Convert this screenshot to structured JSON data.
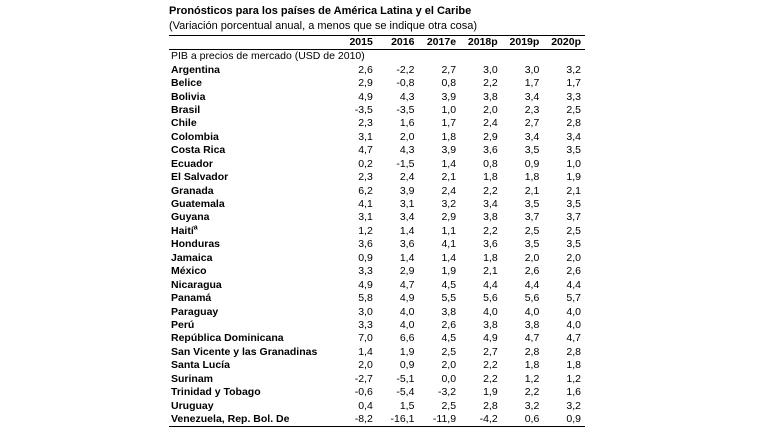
{
  "doc": {
    "title": "Pronósticos para los países de América Latina y el Caribe",
    "subtitle": "(Variación porcentual anual, a menos que se indique otra cosa)",
    "section_label": "PIB a precios de mercado (USD de 2010)"
  },
  "columns": [
    "2015",
    "2016",
    "2017e",
    "2018p",
    "2019p",
    "2020p"
  ],
  "rows": [
    {
      "country": "Argentina",
      "note": "",
      "values": [
        "2,6",
        "-2,2",
        "2,7",
        "3,0",
        "3,0",
        "3,2"
      ]
    },
    {
      "country": "Belice",
      "note": "",
      "values": [
        "2,9",
        "-0,8",
        "0,8",
        "2,2",
        "1,7",
        "1,7"
      ]
    },
    {
      "country": "Bolivia",
      "note": "",
      "values": [
        "4,9",
        "4,3",
        "3,9",
        "3,8",
        "3,4",
        "3,3"
      ]
    },
    {
      "country": "Brasil",
      "note": "",
      "values": [
        "-3,5",
        "-3,5",
        "1,0",
        "2,0",
        "2,3",
        "2,5"
      ]
    },
    {
      "country": "Chile",
      "note": "",
      "values": [
        "2,3",
        "1,6",
        "1,7",
        "2,4",
        "2,7",
        "2,8"
      ]
    },
    {
      "country": "Colombia",
      "note": "",
      "values": [
        "3,1",
        "2,0",
        "1,8",
        "2,9",
        "3,4",
        "3,4"
      ]
    },
    {
      "country": "Costa Rica",
      "note": "",
      "values": [
        "4,7",
        "4,3",
        "3,9",
        "3,6",
        "3,5",
        "3,5"
      ]
    },
    {
      "country": "Ecuador",
      "note": "",
      "values": [
        "0,2",
        "-1,5",
        "1,4",
        "0,8",
        "0,9",
        "1,0"
      ]
    },
    {
      "country": "El Salvador",
      "note": "",
      "values": [
        "2,3",
        "2,4",
        "2,1",
        "1,8",
        "1,8",
        "1,9"
      ]
    },
    {
      "country": "Granada",
      "note": "",
      "values": [
        "6,2",
        "3,9",
        "2,4",
        "2,2",
        "2,1",
        "2,1"
      ]
    },
    {
      "country": "Guatemala",
      "note": "",
      "values": [
        "4,1",
        "3,1",
        "3,2",
        "3,4",
        "3,5",
        "3,5"
      ]
    },
    {
      "country": "Guyana",
      "note": "",
      "values": [
        "3,1",
        "3,4",
        "2,9",
        "3,8",
        "3,7",
        "3,7"
      ]
    },
    {
      "country": "Haití",
      "note": "a",
      "values": [
        "1,2",
        "1,4",
        "1,1",
        "2,2",
        "2,5",
        "2,5"
      ]
    },
    {
      "country": "Honduras",
      "note": "",
      "values": [
        "3,6",
        "3,6",
        "4,1",
        "3,6",
        "3,5",
        "3,5"
      ]
    },
    {
      "country": "Jamaica",
      "note": "",
      "values": [
        "0,9",
        "1,4",
        "1,4",
        "1,8",
        "2,0",
        "2,0"
      ]
    },
    {
      "country": "México",
      "note": "",
      "values": [
        "3,3",
        "2,9",
        "1,9",
        "2,1",
        "2,6",
        "2,6"
      ]
    },
    {
      "country": "Nicaragua",
      "note": "",
      "values": [
        "4,9",
        "4,7",
        "4,5",
        "4,4",
        "4,4",
        "4,4"
      ]
    },
    {
      "country": "Panamá",
      "note": "",
      "values": [
        "5,8",
        "4,9",
        "5,5",
        "5,6",
        "5,6",
        "5,7"
      ]
    },
    {
      "country": "Paraguay",
      "note": "",
      "values": [
        "3,0",
        "4,0",
        "3,8",
        "4,0",
        "4,0",
        "4,0"
      ]
    },
    {
      "country": "Perú",
      "note": "",
      "values": [
        "3,3",
        "4,0",
        "2,6",
        "3,8",
        "3,8",
        "4,0"
      ]
    },
    {
      "country": "República Dominicana",
      "note": "",
      "values": [
        "7,0",
        "6,6",
        "4,5",
        "4,9",
        "4,7",
        "4,7"
      ]
    },
    {
      "country": "San Vicente y las Granadinas",
      "note": "",
      "values": [
        "1,4",
        "1,9",
        "2,5",
        "2,7",
        "2,8",
        "2,8"
      ]
    },
    {
      "country": "Santa Lucía",
      "note": "",
      "values": [
        "2,0",
        "0,9",
        "2,0",
        "2,2",
        "1,8",
        "1,8"
      ]
    },
    {
      "country": "Surinam",
      "note": "",
      "values": [
        "-2,7",
        "-5,1",
        "0,0",
        "2,2",
        "1,2",
        "1,2"
      ]
    },
    {
      "country": "Trinidad y Tobago",
      "note": "",
      "values": [
        "-0,6",
        "-5,4",
        "-3,2",
        "1,9",
        "2,2",
        "1,6"
      ]
    },
    {
      "country": "Uruguay",
      "note": "",
      "values": [
        "0,4",
        "1,5",
        "2,5",
        "2,8",
        "3,2",
        "3,2"
      ]
    },
    {
      "country": "Venezuela, Rep. Bol. De",
      "note": "",
      "values": [
        "-8,2",
        "-16,1",
        "-11,9",
        "-4,2",
        "0,6",
        "0,9"
      ]
    }
  ]
}
